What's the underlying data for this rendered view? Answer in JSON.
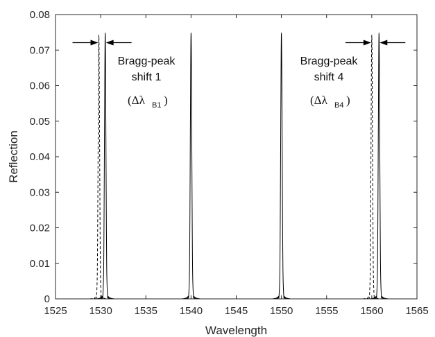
{
  "chart_data": {
    "type": "line",
    "title": "",
    "xlabel": "Wavelength",
    "ylabel": "Reflection",
    "xlim": [
      1525,
      1565
    ],
    "ylim": [
      0,
      0.08
    ],
    "xticks": [
      1525,
      1530,
      1535,
      1540,
      1545,
      1550,
      1555,
      1560,
      1565
    ],
    "yticks": [
      0,
      0.01,
      0.02,
      0.03,
      0.04,
      0.05,
      0.06,
      0.07,
      0.08
    ],
    "xtick_labels": [
      "1525",
      "1530",
      "1535",
      "1540",
      "1545",
      "1550",
      "1555",
      "1560",
      "1565"
    ],
    "ytick_labels": [
      "0",
      "0.01",
      "0.02",
      "0.03",
      "0.04",
      "0.05",
      "0.06",
      "0.07",
      "0.08"
    ],
    "grid": false,
    "series": [
      {
        "style": "solid",
        "color": "#000000",
        "peaks": [
          {
            "center": 1530.5,
            "height": 0.072
          },
          {
            "center": 1540.0,
            "height": 0.072
          },
          {
            "center": 1550.0,
            "height": 0.072
          },
          {
            "center": 1560.8,
            "height": 0.072
          }
        ]
      },
      {
        "style": "dashed",
        "color": "#000000",
        "peaks": [
          {
            "center": 1529.8,
            "height": 0.072
          },
          {
            "center": 1560.0,
            "height": 0.072
          }
        ]
      }
    ],
    "annotations": [
      {
        "line1": "Bragg-peak",
        "line2": "shift 1",
        "symbol": "(Δλ",
        "subscript": "B1",
        "close": ")",
        "arrow_pair_at": [
          1529.8,
          1530.5
        ],
        "arrow_y": 0.0721
      },
      {
        "line1": "Bragg-peak",
        "line2": "shift 4",
        "symbol": "(Δλ",
        "subscript": "B4",
        "close": ")",
        "arrow_pair_at": [
          1560.0,
          1560.8
        ],
        "arrow_y": 0.0721
      }
    ]
  }
}
